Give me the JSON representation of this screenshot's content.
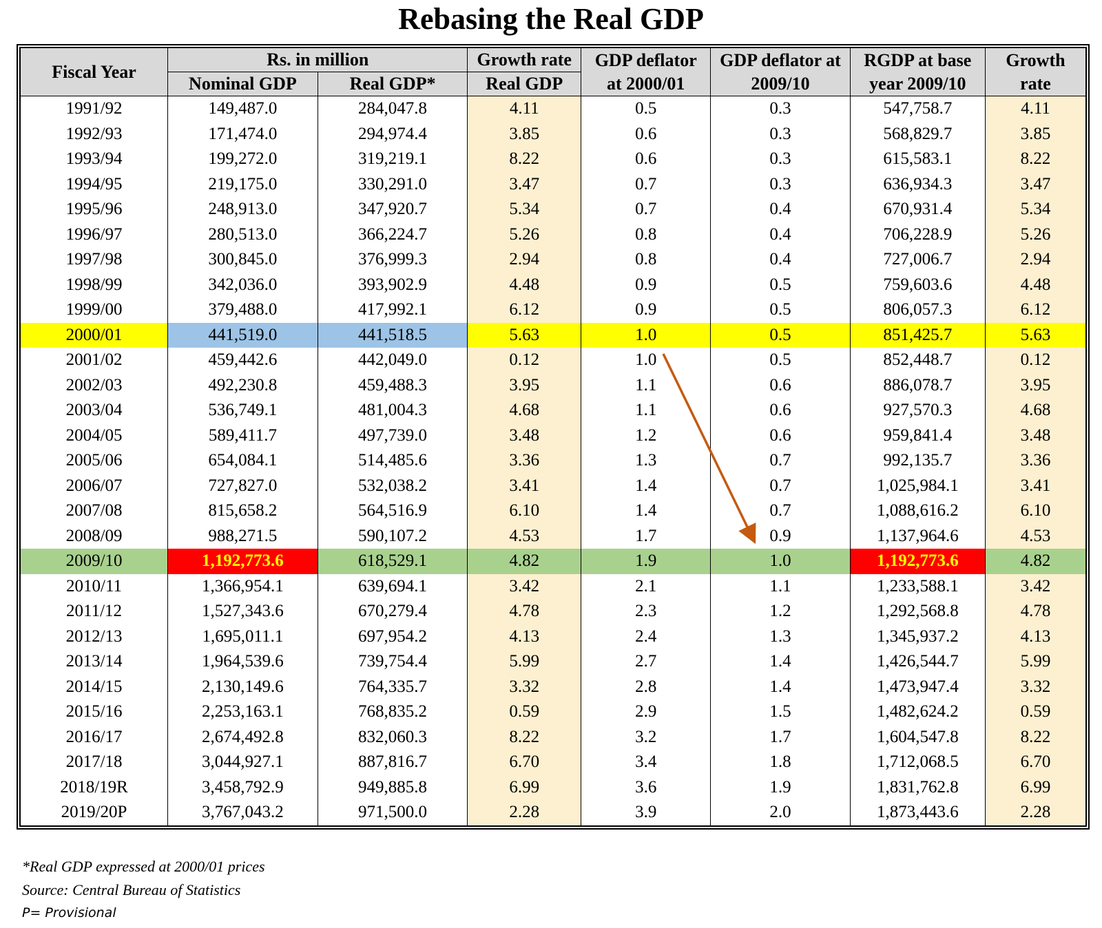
{
  "title": "Rebasing the Real GDP",
  "headers": {
    "fiscal_year": "Fiscal Year",
    "rs_million": "Rs. in million",
    "nominal_gdp": "Nominal GDP",
    "real_gdp_star": "Real GDP*",
    "growth_rate": "Growth rate",
    "real_gdp": "Real GDP",
    "deflator_2000_l1": "GDP deflator",
    "deflator_2000_l2": "at 2000/01",
    "deflator_2009_l1": "GDP deflator at",
    "deflator_2009_l2": "2009/10",
    "rgdp_l1": "RGDP at base",
    "rgdp_l2": "year 2009/10",
    "growth2_l1": "Growth",
    "growth2_l2": "rate"
  },
  "rows": [
    [
      "1991/92",
      "149,487.0",
      "284,047.8",
      "4.11",
      "0.5",
      "0.3",
      "547,758.7",
      "4.11"
    ],
    [
      "1992/93",
      "171,474.0",
      "294,974.4",
      "3.85",
      "0.6",
      "0.3",
      "568,829.7",
      "3.85"
    ],
    [
      "1993/94",
      "199,272.0",
      "319,219.1",
      "8.22",
      "0.6",
      "0.3",
      "615,583.1",
      "8.22"
    ],
    [
      "1994/95",
      "219,175.0",
      "330,291.0",
      "3.47",
      "0.7",
      "0.3",
      "636,934.3",
      "3.47"
    ],
    [
      "1995/96",
      "248,913.0",
      "347,920.7",
      "5.34",
      "0.7",
      "0.4",
      "670,931.4",
      "5.34"
    ],
    [
      "1996/97",
      "280,513.0",
      "366,224.7",
      "5.26",
      "0.8",
      "0.4",
      "706,228.9",
      "5.26"
    ],
    [
      "1997/98",
      "300,845.0",
      "376,999.3",
      "2.94",
      "0.8",
      "0.4",
      "727,006.7",
      "2.94"
    ],
    [
      "1998/99",
      "342,036.0",
      "393,902.9",
      "4.48",
      "0.9",
      "0.5",
      "759,603.6",
      "4.48"
    ],
    [
      "1999/00",
      "379,488.0",
      "417,992.1",
      "6.12",
      "0.9",
      "0.5",
      "806,057.3",
      "6.12"
    ],
    [
      "2000/01",
      "441,519.0",
      "441,518.5",
      "5.63",
      "1.0",
      "0.5",
      "851,425.7",
      "5.63"
    ],
    [
      "2001/02",
      "459,442.6",
      "442,049.0",
      "0.12",
      "1.0",
      "0.5",
      "852,448.7",
      "0.12"
    ],
    [
      "2002/03",
      "492,230.8",
      "459,488.3",
      "3.95",
      "1.1",
      "0.6",
      "886,078.7",
      "3.95"
    ],
    [
      "2003/04",
      "536,749.1",
      "481,004.3",
      "4.68",
      "1.1",
      "0.6",
      "927,570.3",
      "4.68"
    ],
    [
      "2004/05",
      "589,411.7",
      "497,739.0",
      "3.48",
      "1.2",
      "0.6",
      "959,841.4",
      "3.48"
    ],
    [
      "2005/06",
      "654,084.1",
      "514,485.6",
      "3.36",
      "1.3",
      "0.7",
      "992,135.7",
      "3.36"
    ],
    [
      "2006/07",
      "727,827.0",
      "532,038.2",
      "3.41",
      "1.4",
      "0.7",
      "1,025,984.1",
      "3.41"
    ],
    [
      "2007/08",
      "815,658.2",
      "564,516.9",
      "6.10",
      "1.4",
      "0.7",
      "1,088,616.2",
      "6.10"
    ],
    [
      "2008/09",
      "988,271.5",
      "590,107.2",
      "4.53",
      "1.7",
      "0.9",
      "1,137,964.6",
      "4.53"
    ],
    [
      "2009/10",
      "1,192,773.6",
      "618,529.1",
      "4.82",
      "1.9",
      "1.0",
      "1,192,773.6",
      "4.82"
    ],
    [
      "2010/11",
      "1,366,954.1",
      "639,694.1",
      "3.42",
      "2.1",
      "1.1",
      "1,233,588.1",
      "3.42"
    ],
    [
      "2011/12",
      "1,527,343.6",
      "670,279.4",
      "4.78",
      "2.3",
      "1.2",
      "1,292,568.8",
      "4.78"
    ],
    [
      "2012/13",
      "1,695,011.1",
      "697,954.2",
      "4.13",
      "2.4",
      "1.3",
      "1,345,937.2",
      "4.13"
    ],
    [
      "2013/14",
      "1,964,539.6",
      "739,754.4",
      "5.99",
      "2.7",
      "1.4",
      "1,426,544.7",
      "5.99"
    ],
    [
      "2014/15",
      "2,130,149.6",
      "764,335.7",
      "3.32",
      "2.8",
      "1.4",
      "1,473,947.4",
      "3.32"
    ],
    [
      "2015/16",
      "2,253,163.1",
      "768,835.2",
      "0.59",
      "2.9",
      "1.5",
      "1,482,624.2",
      "0.59"
    ],
    [
      "2016/17",
      "2,674,492.8",
      "832,060.3",
      "8.22",
      "3.2",
      "1.7",
      "1,604,547.8",
      "8.22"
    ],
    [
      "2017/18",
      "3,044,927.1",
      "887,816.7",
      "6.70",
      "3.4",
      "1.8",
      "1,712,068.5",
      "6.70"
    ],
    [
      "2018/19R",
      "3,458,792.9",
      "949,885.8",
      "6.99",
      "3.6",
      "1.9",
      "1,831,762.8",
      "6.99"
    ],
    [
      "2019/20P",
      "3,767,043.2",
      "971,500.0",
      "2.28",
      "3.9",
      "2.0",
      "1,873,443.6",
      "2.28"
    ]
  ],
  "highlights": {
    "base_2000_row": "2000/01",
    "base_2009_row": "2009/10"
  },
  "colors": {
    "header": "#d9d9d9",
    "growth_column": "#fdf0d0",
    "row_2000": "#ffff00",
    "cells_2000": "#9dc3e6",
    "row_2009": "#a9d18e",
    "cells_2009": "#ff0000",
    "cells_2009_text": "#ffff00",
    "arrow": "#c55a11"
  },
  "notes": [
    "*Real GDP expressed at 2000/01 prices",
    "Source: Central Bureau of Statistics",
    "P= Provisional"
  ]
}
